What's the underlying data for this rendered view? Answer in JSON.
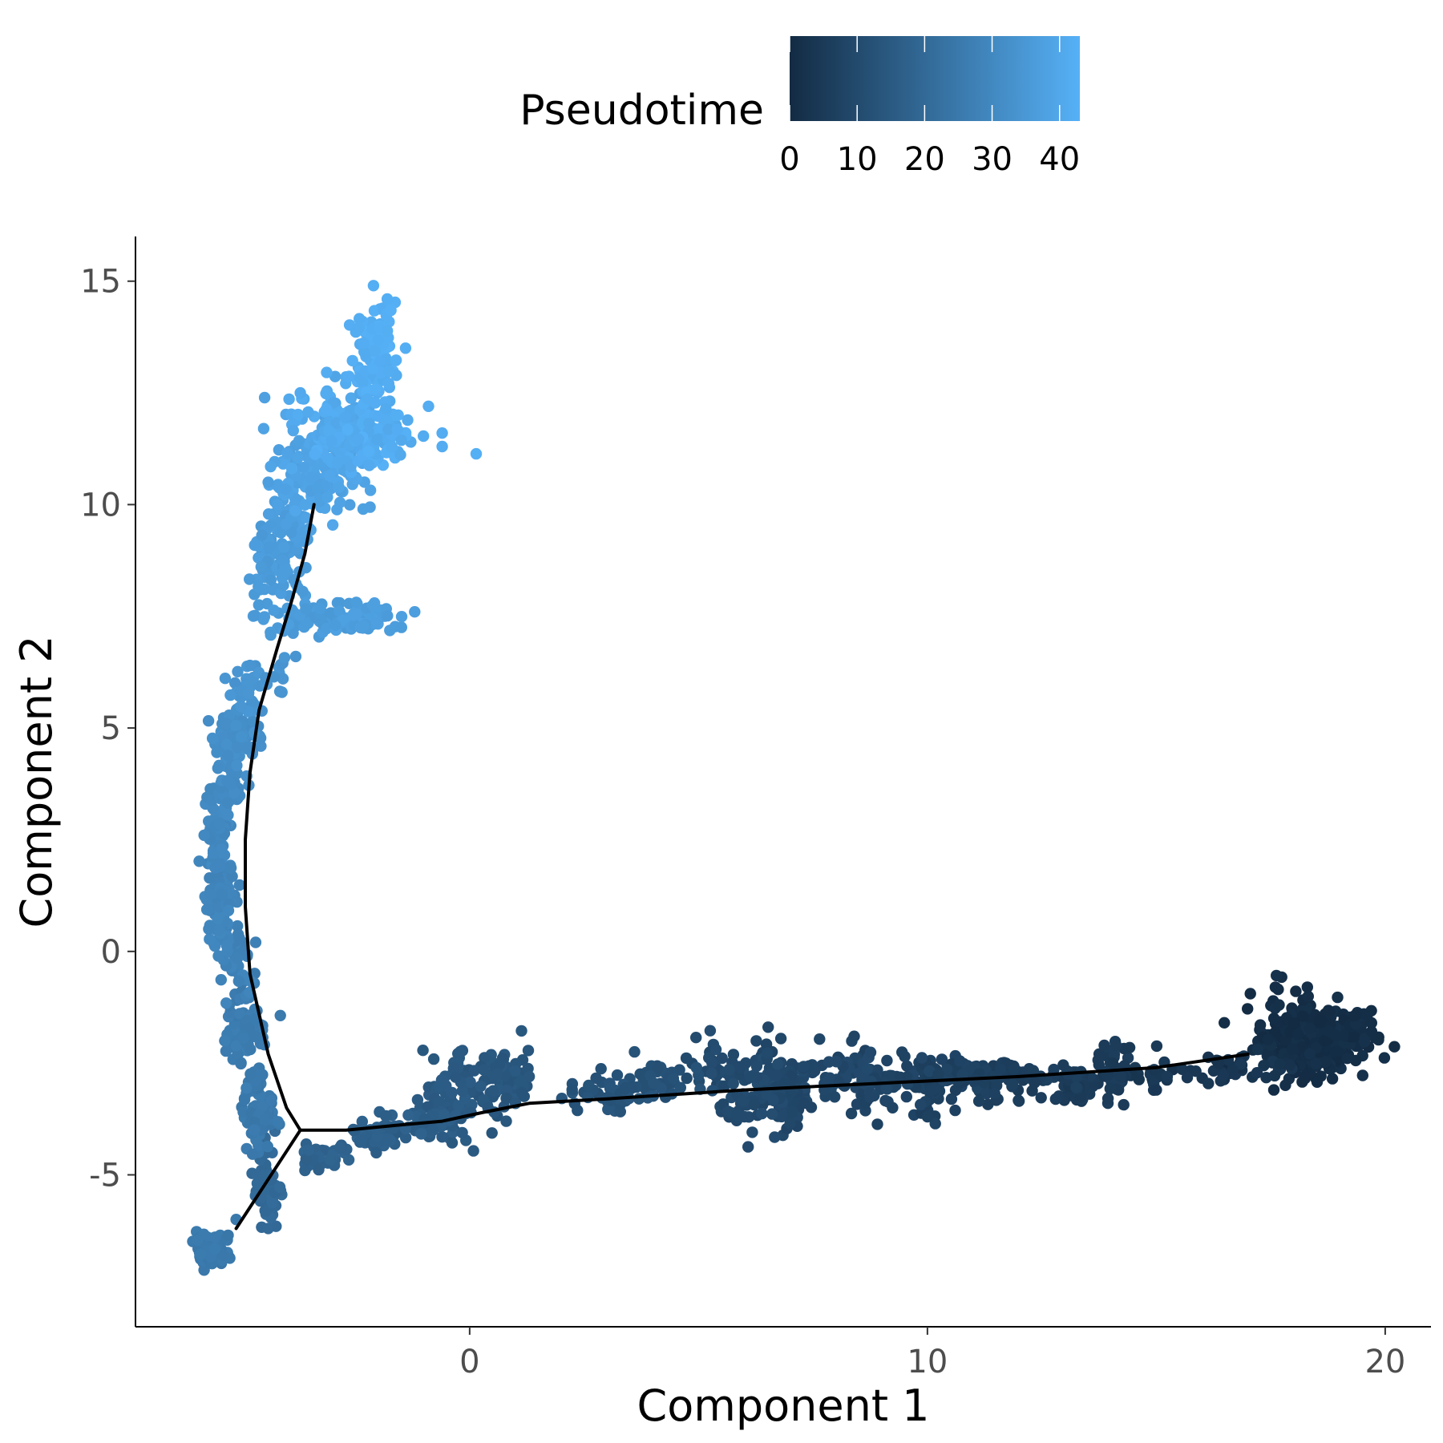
{
  "chart_data": {
    "type": "scatter",
    "xlabel": "Component 1",
    "ylabel": "Component 2",
    "xlim": [
      -7.3,
      21.0
    ],
    "ylim": [
      -8.4,
      16.0
    ],
    "x_ticks": [
      0,
      10,
      20
    ],
    "x_tick_labels": [
      "0",
      "10",
      "20"
    ],
    "y_ticks": [
      -5,
      0,
      5,
      10,
      15
    ],
    "y_tick_labels": [
      "-5",
      "0",
      "5",
      "10",
      "15"
    ],
    "grid": false,
    "legend": {
      "title": "Pseudotime",
      "placement": "top",
      "ticks": [
        0,
        10,
        20,
        30,
        40
      ],
      "tick_labels": [
        "0",
        "10",
        "20",
        "30",
        "40"
      ],
      "range": [
        0,
        43
      ],
      "color_low": "#132b43",
      "color_high": "#56b1f7"
    },
    "trajectory": {
      "color": "#000000",
      "segments": [
        [
          [
            -3.7,
            -4.0
          ],
          [
            -2.7,
            -4.0
          ],
          [
            -1.7,
            -3.9
          ],
          [
            -0.6,
            -3.8
          ],
          [
            0.3,
            -3.6
          ],
          [
            1.3,
            -3.4
          ],
          [
            3.0,
            -3.3
          ],
          [
            6.0,
            -3.1
          ],
          [
            9.0,
            -2.95
          ],
          [
            12.0,
            -2.8
          ],
          [
            15.0,
            -2.6
          ],
          [
            17.0,
            -2.3
          ]
        ],
        [
          [
            -3.7,
            -4.0
          ],
          [
            -5.1,
            -6.2
          ]
        ],
        [
          [
            -3.7,
            -4.0
          ],
          [
            -4.0,
            -3.5
          ],
          [
            -4.4,
            -2.3
          ],
          [
            -4.8,
            -0.5
          ],
          [
            -4.9,
            1.0
          ],
          [
            -4.9,
            2.5
          ],
          [
            -4.8,
            4.0
          ],
          [
            -4.6,
            5.4
          ],
          [
            -4.2,
            6.8
          ],
          [
            -3.9,
            7.8
          ],
          [
            -3.6,
            8.9
          ],
          [
            -3.4,
            10.0
          ]
        ]
      ]
    },
    "point_groups": [
      {
        "cx": 18.4,
        "cy": -2.0,
        "sx": 0.55,
        "sy": 0.35,
        "n": 320,
        "t": [
          0,
          2
        ]
      },
      {
        "cx": 17.8,
        "cy": -1.6,
        "sx": 0.4,
        "sy": 0.5,
        "n": 40,
        "t": [
          0,
          2
        ]
      },
      {
        "cx": 19.3,
        "cy": -1.7,
        "sx": 0.25,
        "sy": 0.18,
        "n": 30,
        "t": [
          0,
          2
        ]
      },
      {
        "cx": 16.8,
        "cy": -2.55,
        "sx": 0.7,
        "sy": 0.15,
        "n": 40,
        "t": [
          2,
          4
        ]
      },
      {
        "cx": 14.8,
        "cy": -2.75,
        "sx": 0.8,
        "sy": 0.2,
        "n": 30,
        "t": [
          3,
          5
        ]
      },
      {
        "cx": 14.0,
        "cy": -2.7,
        "sx": 0.25,
        "sy": 0.35,
        "n": 40,
        "t": [
          4,
          6
        ]
      },
      {
        "cx": 13.3,
        "cy": -3.0,
        "sx": 0.25,
        "sy": 0.25,
        "n": 40,
        "t": [
          4,
          6
        ]
      },
      {
        "cx": 12.0,
        "cy": -2.75,
        "sx": 0.6,
        "sy": 0.2,
        "n": 50,
        "t": [
          5,
          7
        ]
      },
      {
        "cx": 10.8,
        "cy": -2.85,
        "sx": 0.6,
        "sy": 0.25,
        "n": 60,
        "t": [
          6,
          8
        ]
      },
      {
        "cx": 10.0,
        "cy": -3.05,
        "sx": 0.2,
        "sy": 0.4,
        "n": 40,
        "t": [
          6,
          8
        ]
      },
      {
        "cx": 9.0,
        "cy": -2.9,
        "sx": 0.6,
        "sy": 0.3,
        "n": 60,
        "t": [
          7,
          9
        ]
      },
      {
        "cx": 7.6,
        "cy": -2.75,
        "sx": 0.7,
        "sy": 0.3,
        "n": 70,
        "t": [
          8,
          10
        ]
      },
      {
        "cx": 7.0,
        "cy": -3.2,
        "sx": 0.3,
        "sy": 0.35,
        "n": 60,
        "t": [
          8,
          10
        ]
      },
      {
        "cx": 6.4,
        "cy": -3.2,
        "sx": 0.25,
        "sy": 0.4,
        "n": 40,
        "t": [
          9,
          11
        ]
      },
      {
        "cx": 5.6,
        "cy": -2.6,
        "sx": 0.6,
        "sy": 0.3,
        "n": 40,
        "t": [
          9,
          11
        ]
      },
      {
        "cx": 5.8,
        "cy": -3.4,
        "sx": 0.2,
        "sy": 0.25,
        "n": 15,
        "t": [
          9,
          11
        ]
      },
      {
        "cx": 4.3,
        "cy": -2.85,
        "sx": 0.6,
        "sy": 0.25,
        "n": 40,
        "t": [
          11,
          13
        ]
      },
      {
        "cx": 3.2,
        "cy": -3.2,
        "sx": 0.45,
        "sy": 0.15,
        "n": 45,
        "t": [
          12,
          14
        ]
      },
      {
        "cx": 0.8,
        "cy": -2.8,
        "sx": 0.25,
        "sy": 0.3,
        "n": 45,
        "t": [
          13,
          15
        ]
      },
      {
        "cx": 0.3,
        "cy": -3.0,
        "sx": 0.35,
        "sy": 0.4,
        "n": 40,
        "t": [
          13,
          15
        ]
      },
      {
        "cx": -0.5,
        "cy": -3.5,
        "sx": 0.35,
        "sy": 0.45,
        "n": 60,
        "t": [
          14,
          16
        ]
      },
      {
        "cx": -1.0,
        "cy": -3.85,
        "sx": 0.3,
        "sy": 0.2,
        "n": 40,
        "t": [
          15,
          17
        ]
      },
      {
        "cx": -2.0,
        "cy": -4.1,
        "sx": 0.3,
        "sy": 0.25,
        "n": 50,
        "t": [
          16,
          18
        ]
      },
      {
        "cx": -3.2,
        "cy": -4.6,
        "sx": 0.25,
        "sy": 0.15,
        "n": 40,
        "t": [
          17,
          19
        ]
      },
      {
        "cx": -4.4,
        "cy": -5.3,
        "sx": 0.15,
        "sy": 0.45,
        "n": 60,
        "t": [
          19,
          21
        ]
      },
      {
        "cx": -5.65,
        "cy": -6.7,
        "sx": 0.15,
        "sy": 0.2,
        "n": 150,
        "t": [
          24,
          26
        ]
      },
      {
        "cx": -4.6,
        "cy": -3.7,
        "sx": 0.18,
        "sy": 0.3,
        "n": 60,
        "t": [
          24,
          26
        ]
      },
      {
        "cx": -4.7,
        "cy": -2.9,
        "sx": 0.1,
        "sy": 0.2,
        "n": 15,
        "t": [
          24,
          26
        ]
      },
      {
        "cx": -4.9,
        "cy": -1.8,
        "sx": 0.2,
        "sy": 0.45,
        "n": 70,
        "t": [
          25,
          27
        ]
      },
      {
        "cx": -5.05,
        "cy": -0.3,
        "sx": 0.15,
        "sy": 0.5,
        "n": 40,
        "t": [
          27,
          29
        ]
      },
      {
        "cx": -5.4,
        "cy": 1.0,
        "sx": 0.15,
        "sy": 0.55,
        "n": 110,
        "t": [
          28,
          30
        ]
      },
      {
        "cx": -5.5,
        "cy": 2.7,
        "sx": 0.12,
        "sy": 0.4,
        "n": 60,
        "t": [
          29,
          31
        ]
      },
      {
        "cx": -5.3,
        "cy": 3.6,
        "sx": 0.15,
        "sy": 0.25,
        "n": 30,
        "t": [
          30,
          32
        ]
      },
      {
        "cx": -5.1,
        "cy": 4.8,
        "sx": 0.25,
        "sy": 0.35,
        "n": 100,
        "t": [
          31,
          33
        ]
      },
      {
        "cx": -4.9,
        "cy": 5.8,
        "sx": 0.15,
        "sy": 0.35,
        "n": 40,
        "t": [
          33,
          35
        ]
      },
      {
        "cx": -4.3,
        "cy": 6.2,
        "sx": 0.15,
        "sy": 0.25,
        "n": 12,
        "t": [
          33,
          35
        ]
      },
      {
        "cx": -3.3,
        "cy": 7.45,
        "sx": 0.6,
        "sy": 0.2,
        "n": 80,
        "t": [
          35,
          37
        ]
      },
      {
        "cx": -2.3,
        "cy": 7.5,
        "sx": 0.35,
        "sy": 0.18,
        "n": 50,
        "t": [
          36,
          38
        ]
      },
      {
        "cx": -4.2,
        "cy": 8.7,
        "sx": 0.3,
        "sy": 0.4,
        "n": 90,
        "t": [
          35,
          37
        ]
      },
      {
        "cx": -3.9,
        "cy": 9.6,
        "sx": 0.25,
        "sy": 0.3,
        "n": 40,
        "t": [
          36,
          38
        ]
      },
      {
        "cx": -3.3,
        "cy": 10.8,
        "sx": 0.5,
        "sy": 0.5,
        "n": 150,
        "t": [
          37,
          40
        ]
      },
      {
        "cx": -2.8,
        "cy": 11.7,
        "sx": 0.45,
        "sy": 0.45,
        "n": 120,
        "t": [
          39,
          42
        ]
      },
      {
        "cx": -2.0,
        "cy": 11.5,
        "sx": 0.5,
        "sy": 0.4,
        "n": 80,
        "t": [
          40,
          43
        ]
      },
      {
        "cx": -2.1,
        "cy": 13.3,
        "sx": 0.25,
        "sy": 0.55,
        "n": 120,
        "t": [
          41,
          43
        ]
      }
    ],
    "outliers": [
      [
        -1.2,
        7.6
      ],
      [
        -4.8,
        6.4
      ],
      [
        -4.1,
        5.8
      ],
      [
        -3.8,
        6.6
      ],
      [
        -5.5,
        4.1
      ],
      [
        -5.6,
        2.2
      ],
      [
        -5.7,
        0.5
      ],
      [
        -5.1,
        -6.0
      ],
      [
        -1.7,
        11.3
      ],
      [
        -0.6,
        11.6
      ],
      [
        -0.6,
        11.3
      ],
      [
        -0.9,
        12.2
      ],
      [
        -1.4,
        13.5
      ],
      [
        -2.1,
        14.9
      ],
      [
        -4.5,
        11.7
      ],
      [
        -4.4,
        10.5
      ],
      [
        -1.8,
        14.6
      ],
      [
        -3.7,
        12.5
      ],
      [
        -0.8,
        -4.0
      ],
      [
        0.8,
        -3.8
      ],
      [
        1.0,
        -3.4
      ],
      [
        2.6,
        -3.0
      ],
      [
        3.7,
        -3.3
      ],
      [
        8.4,
        -1.9
      ],
      [
        6.8,
        -1.95
      ],
      [
        10.0,
        -3.7
      ],
      [
        7.0,
        -3.85
      ],
      [
        6.0,
        -3.7
      ],
      [
        12.0,
        -3.35
      ],
      [
        15.0,
        -3.1
      ],
      [
        17.6,
        -0.8
      ],
      [
        18.3,
        -0.8
      ],
      [
        19.7,
        -1.6
      ],
      [
        1.3,
        -2.8
      ],
      [
        -5.8,
        2.6
      ],
      [
        -4.4,
        -6.2
      ]
    ]
  }
}
